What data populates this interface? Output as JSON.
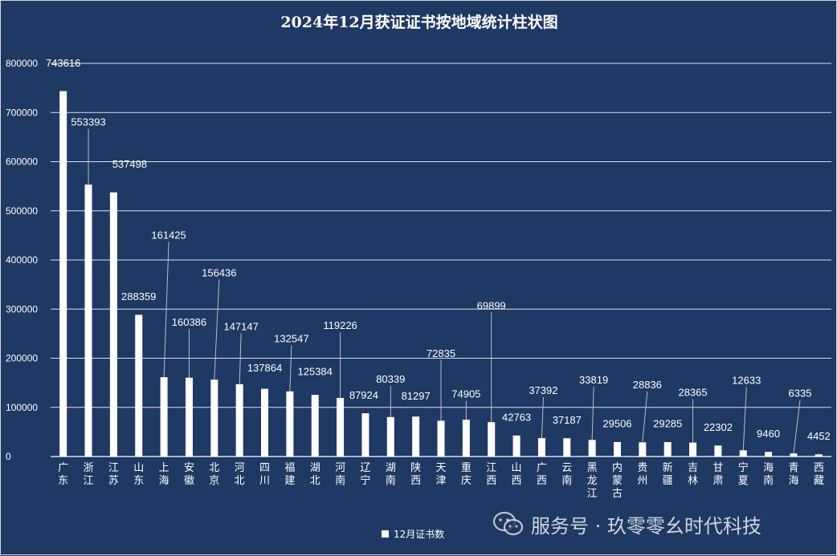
{
  "chart_data": {
    "type": "bar",
    "title": "2024年12月获证证书按地域统计柱状图",
    "categories": [
      "广东",
      "浙江",
      "江苏",
      "山东",
      "上海",
      "安徽",
      "北京",
      "河北",
      "四川",
      "福建",
      "湖北",
      "河南",
      "辽宁",
      "湖南",
      "陕西",
      "天津",
      "重庆",
      "江西",
      "山西",
      "广西",
      "云南",
      "黑龙江",
      "内蒙古",
      "贵州",
      "新疆",
      "吉林",
      "甘肃",
      "宁夏",
      "海南",
      "青海",
      "西藏"
    ],
    "series": [
      {
        "name": "12月证书数",
        "values": [
          743616,
          553393,
          537498,
          288359,
          161425,
          160386,
          156436,
          147147,
          137864,
          132547,
          125384,
          119226,
          87924,
          80339,
          81297,
          72835,
          74905,
          69899,
          42763,
          37392,
          37187,
          33819,
          29506,
          28836,
          29285,
          28365,
          22302,
          12633,
          9460,
          6335,
          4452
        ]
      }
    ],
    "ylim": [
      0,
      800000
    ],
    "yticks": [
      "0",
      "100000",
      "200000",
      "300000",
      "400000",
      "500000",
      "600000",
      "700000",
      "800000"
    ],
    "grid": true,
    "legend_position": "bottom",
    "colors": {
      "background": "#1f3864",
      "bar": "#ffffff",
      "text": "#ffffff",
      "grid": "#ffffff"
    }
  },
  "watermark": {
    "icon": "wechat-icon",
    "text": "服务号 · 玖零零幺时代科技"
  }
}
